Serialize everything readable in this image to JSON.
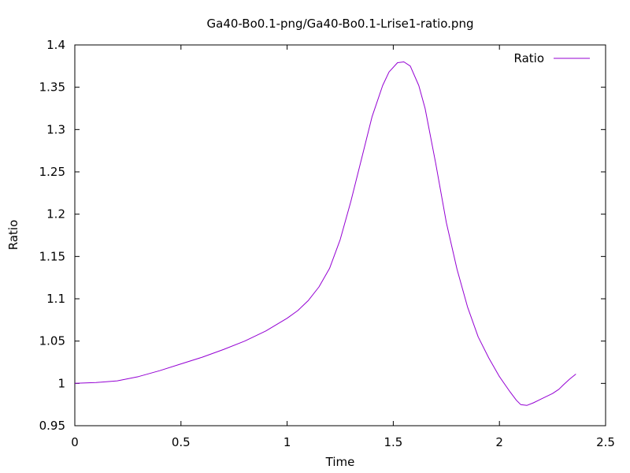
{
  "chart_data": {
    "type": "line",
    "title": "Ga40-Bo0.1-png/Ga40-Bo0.1-Lrise1-ratio.png",
    "xlabel": "Time",
    "ylabel": "Ratio",
    "xlim": [
      0,
      2.5
    ],
    "ylim": [
      0.95,
      1.4
    ],
    "xticks": [
      {
        "value": 0,
        "label": "0"
      },
      {
        "value": 0.5,
        "label": "0.5"
      },
      {
        "value": 1,
        "label": "1"
      },
      {
        "value": 1.5,
        "label": "1.5"
      },
      {
        "value": 2,
        "label": "2"
      },
      {
        "value": 2.5,
        "label": "2.5"
      }
    ],
    "yticks": [
      {
        "value": 0.95,
        "label": "0.95"
      },
      {
        "value": 1,
        "label": "1"
      },
      {
        "value": 1.05,
        "label": "1.05"
      },
      {
        "value": 1.1,
        "label": "1.1"
      },
      {
        "value": 1.15,
        "label": "1.15"
      },
      {
        "value": 1.2,
        "label": "1.2"
      },
      {
        "value": 1.25,
        "label": "1.25"
      },
      {
        "value": 1.3,
        "label": "1.3"
      },
      {
        "value": 1.35,
        "label": "1.35"
      },
      {
        "value": 1.4,
        "label": "1.4"
      }
    ],
    "grid": false,
    "legend": "top-right",
    "series": [
      {
        "name": "Ratio",
        "color": "#9400d3",
        "x": [
          0,
          0.1,
          0.2,
          0.3,
          0.4,
          0.5,
          0.6,
          0.7,
          0.8,
          0.9,
          1.0,
          1.05,
          1.1,
          1.15,
          1.2,
          1.25,
          1.3,
          1.35,
          1.4,
          1.45,
          1.48,
          1.52,
          1.55,
          1.58,
          1.62,
          1.65,
          1.7,
          1.75,
          1.8,
          1.85,
          1.9,
          1.95,
          2.0,
          2.05,
          2.08,
          2.1,
          2.13,
          2.16,
          2.2,
          2.25,
          2.28,
          2.3,
          2.33,
          2.36
        ],
        "y": [
          1.0,
          1.001,
          1.003,
          1.008,
          1.015,
          1.023,
          1.031,
          1.04,
          1.05,
          1.062,
          1.077,
          1.086,
          1.098,
          1.114,
          1.136,
          1.17,
          1.215,
          1.265,
          1.315,
          1.352,
          1.368,
          1.379,
          1.38,
          1.375,
          1.352,
          1.325,
          1.26,
          1.19,
          1.135,
          1.09,
          1.055,
          1.03,
          1.008,
          0.99,
          0.98,
          0.975,
          0.974,
          0.977,
          0.982,
          0.988,
          0.993,
          0.998,
          1.005,
          1.011
        ]
      }
    ]
  }
}
